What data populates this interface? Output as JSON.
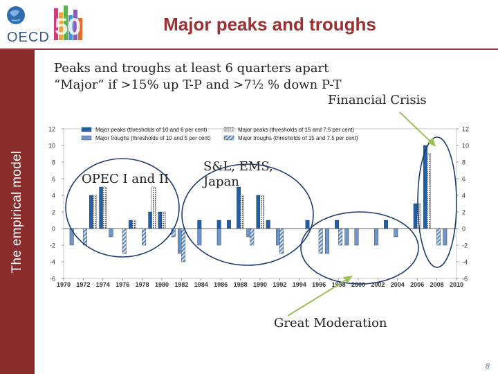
{
  "slide": {
    "title": "Major peaks and troughs",
    "side_label": "The empirical model",
    "subtitle_line1": "Peaks and troughs at least 6 quarters apart",
    "subtitle_line2": "“Major” if >15% up T-P and >7½ % down P-T",
    "page_number": "8",
    "logo_text": "OECD",
    "logo_number": "50"
  },
  "annotations": {
    "financial_crisis": "Financial Crisis",
    "opec_line1": "OPEC I and II",
    "sl_line1": "S&L, EMS,",
    "sl_line2": "Japan",
    "great_moderation": "Great Moderation"
  },
  "colors": {
    "peak_main": "#1f5fa8",
    "trough_main": "#6d97cc",
    "brand_red": "#9c2f2f",
    "sidebar": "#8b2d2d",
    "arrow": "#9cbf5a",
    "ellipse": "#1e3a6e"
  },
  "chart_data": {
    "type": "bar",
    "ylim": [
      -6,
      12
    ],
    "yticks": [
      -6,
      -4,
      -2,
      0,
      2,
      4,
      6,
      8,
      10,
      12
    ],
    "xlim": [
      1970,
      2010
    ],
    "xticks": [
      "1970",
      "1972",
      "1974",
      "1976",
      "1978",
      "1980",
      "1982",
      "1984",
      "1986",
      "1988",
      "1990",
      "1992",
      "1994",
      "1996",
      "1998",
      "2000",
      "2002",
      "2004",
      "2006",
      "2008",
      "2010"
    ],
    "grid": false,
    "legend_placement": "top",
    "series": [
      {
        "name": "Major peaks (thresholds of 10 and 6 per cent)",
        "style": "solid-dark",
        "points": [
          {
            "x": 1973,
            "y": 4
          },
          {
            "x": 1974,
            "y": 5
          },
          {
            "x": 1977,
            "y": 1
          },
          {
            "x": 1979,
            "y": 2
          },
          {
            "x": 1980,
            "y": 2
          },
          {
            "x": 1984,
            "y": 1
          },
          {
            "x": 1986,
            "y": 1
          },
          {
            "x": 1987,
            "y": 1
          },
          {
            "x": 1988,
            "y": 5
          },
          {
            "x": 1990,
            "y": 4
          },
          {
            "x": 1991,
            "y": 1
          },
          {
            "x": 1995,
            "y": 1
          },
          {
            "x": 1998,
            "y": 1
          },
          {
            "x": 2003,
            "y": 1
          },
          {
            "x": 2006,
            "y": 3
          },
          {
            "x": 2007,
            "y": 10
          }
        ]
      },
      {
        "name": "Major troughs (thresholds of 10 and 5 per cent)",
        "style": "solid-light",
        "points": [
          {
            "x": 1971,
            "y": -2
          },
          {
            "x": 1975,
            "y": -1
          },
          {
            "x": 1982,
            "y": -3
          },
          {
            "x": 1984,
            "y": -2
          },
          {
            "x": 1986,
            "y": -2
          },
          {
            "x": 1989,
            "y": -1
          },
          {
            "x": 1992,
            "y": -2
          },
          {
            "x": 1997,
            "y": -3
          },
          {
            "x": 1999,
            "y": -2
          },
          {
            "x": 2000,
            "y": -2
          },
          {
            "x": 2002,
            "y": -2
          },
          {
            "x": 2004,
            "y": -1
          },
          {
            "x": 2009,
            "y": -2
          }
        ]
      },
      {
        "name": "Major peaks (thresholds of 15 and 7.5 per cent)",
        "style": "dotted",
        "points": [
          {
            "x": 1973,
            "y": 4
          },
          {
            "x": 1974,
            "y": 5
          },
          {
            "x": 1977,
            "y": 1
          },
          {
            "x": 1979,
            "y": 5
          },
          {
            "x": 1980,
            "y": 2
          },
          {
            "x": 1988,
            "y": 4
          },
          {
            "x": 1990,
            "y": 4
          },
          {
            "x": 2006,
            "y": 3
          },
          {
            "x": 2007,
            "y": 9
          }
        ]
      },
      {
        "name": "Major troughs (thresholds of 15 and 7.5 per cent)",
        "style": "hatched",
        "points": [
          {
            "x": 1972,
            "y": -2
          },
          {
            "x": 1976,
            "y": -3
          },
          {
            "x": 1978,
            "y": -2
          },
          {
            "x": 1981,
            "y": -1
          },
          {
            "x": 1982,
            "y": -4
          },
          {
            "x": 1989,
            "y": -2
          },
          {
            "x": 1992,
            "y": -3
          },
          {
            "x": 1996,
            "y": -3
          },
          {
            "x": 1998,
            "y": -2
          },
          {
            "x": 2008,
            "y": -2
          }
        ]
      }
    ]
  }
}
